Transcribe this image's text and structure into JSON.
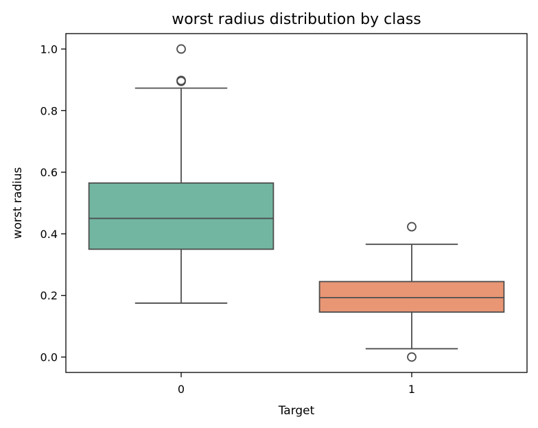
{
  "chart_data": {
    "type": "box",
    "title": "worst radius distribution by class",
    "xlabel": "Target",
    "ylabel": "worst radius",
    "categories": [
      "0",
      "1"
    ],
    "ylim": [
      -0.05,
      1.05
    ],
    "yticks": [
      0.0,
      0.2,
      0.4,
      0.6,
      0.8,
      1.0
    ],
    "ytick_labels": [
      "0.0",
      "0.2",
      "0.4",
      "0.6",
      "0.8",
      "1.0"
    ],
    "grid": false,
    "boxes": [
      {
        "category": "0",
        "whisker_low": 0.175,
        "q1": 0.35,
        "median": 0.45,
        "q3": 0.565,
        "whisker_high": 0.873,
        "outliers": [
          1.0,
          0.898,
          0.895
        ],
        "color": "#72B6A1"
      },
      {
        "category": "1",
        "whisker_low": 0.027,
        "q1": 0.146,
        "median": 0.193,
        "q3": 0.245,
        "whisker_high": 0.366,
        "outliers": [
          0.423,
          0.0
        ],
        "color": "#E99675"
      }
    ],
    "line_color": "#4d4d4d"
  }
}
